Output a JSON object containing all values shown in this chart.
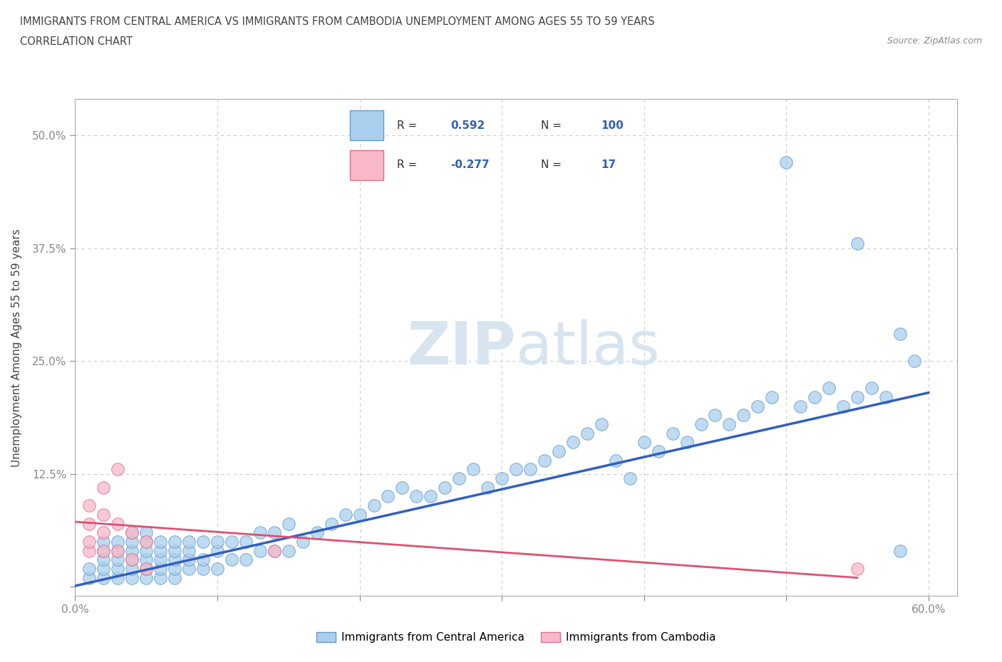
{
  "title_line1": "IMMIGRANTS FROM CENTRAL AMERICA VS IMMIGRANTS FROM CAMBODIA UNEMPLOYMENT AMONG AGES 55 TO 59 YEARS",
  "title_line2": "CORRELATION CHART",
  "source_text": "Source: ZipAtlas.com",
  "ylabel": "Unemployment Among Ages 55 to 59 years",
  "xlim": [
    0.0,
    0.62
  ],
  "ylim": [
    -0.01,
    0.54
  ],
  "R_blue": 0.592,
  "N_blue": 100,
  "R_pink": -0.277,
  "N_pink": 17,
  "color_blue": "#aacfee",
  "color_pink": "#f8b8c8",
  "line_blue": "#3060c0",
  "line_pink": "#e05070",
  "watermark_color": "#d8e4f0",
  "grid_color": "#cccccc",
  "blue_line_start_y": 0.001,
  "blue_line_end_y": 0.215,
  "pink_line_start_y": 0.072,
  "pink_line_end_x": 0.55,
  "pink_line_end_y": 0.01,
  "blue_x": [
    0.01,
    0.01,
    0.02,
    0.02,
    0.02,
    0.02,
    0.02,
    0.03,
    0.03,
    0.03,
    0.03,
    0.03,
    0.04,
    0.04,
    0.04,
    0.04,
    0.04,
    0.04,
    0.05,
    0.05,
    0.05,
    0.05,
    0.05,
    0.05,
    0.06,
    0.06,
    0.06,
    0.06,
    0.06,
    0.07,
    0.07,
    0.07,
    0.07,
    0.07,
    0.08,
    0.08,
    0.08,
    0.08,
    0.09,
    0.09,
    0.09,
    0.1,
    0.1,
    0.1,
    0.11,
    0.11,
    0.12,
    0.12,
    0.13,
    0.13,
    0.14,
    0.14,
    0.15,
    0.15,
    0.16,
    0.17,
    0.18,
    0.19,
    0.2,
    0.21,
    0.22,
    0.23,
    0.24,
    0.25,
    0.26,
    0.27,
    0.28,
    0.29,
    0.3,
    0.31,
    0.32,
    0.33,
    0.34,
    0.35,
    0.36,
    0.37,
    0.38,
    0.39,
    0.4,
    0.41,
    0.42,
    0.43,
    0.44,
    0.45,
    0.46,
    0.47,
    0.48,
    0.49,
    0.5,
    0.51,
    0.52,
    0.53,
    0.54,
    0.55,
    0.56,
    0.57,
    0.58,
    0.59,
    0.55,
    0.58
  ],
  "blue_y": [
    0.01,
    0.02,
    0.01,
    0.02,
    0.03,
    0.04,
    0.05,
    0.01,
    0.02,
    0.03,
    0.04,
    0.05,
    0.01,
    0.02,
    0.03,
    0.04,
    0.05,
    0.06,
    0.01,
    0.02,
    0.03,
    0.04,
    0.05,
    0.06,
    0.01,
    0.02,
    0.03,
    0.04,
    0.05,
    0.01,
    0.02,
    0.03,
    0.04,
    0.05,
    0.02,
    0.03,
    0.04,
    0.05,
    0.02,
    0.03,
    0.05,
    0.02,
    0.04,
    0.05,
    0.03,
    0.05,
    0.03,
    0.05,
    0.04,
    0.06,
    0.04,
    0.06,
    0.04,
    0.07,
    0.05,
    0.06,
    0.07,
    0.08,
    0.08,
    0.09,
    0.1,
    0.11,
    0.1,
    0.1,
    0.11,
    0.12,
    0.13,
    0.11,
    0.12,
    0.13,
    0.13,
    0.14,
    0.15,
    0.16,
    0.17,
    0.18,
    0.14,
    0.12,
    0.16,
    0.15,
    0.17,
    0.16,
    0.18,
    0.19,
    0.18,
    0.19,
    0.2,
    0.21,
    0.47,
    0.2,
    0.21,
    0.22,
    0.2,
    0.21,
    0.22,
    0.21,
    0.04,
    0.25,
    0.38,
    0.28
  ],
  "pink_x": [
    0.01,
    0.01,
    0.01,
    0.01,
    0.02,
    0.02,
    0.02,
    0.02,
    0.03,
    0.03,
    0.03,
    0.04,
    0.04,
    0.05,
    0.05,
    0.14,
    0.55
  ],
  "pink_y": [
    0.04,
    0.05,
    0.07,
    0.09,
    0.04,
    0.06,
    0.08,
    0.11,
    0.04,
    0.07,
    0.13,
    0.03,
    0.06,
    0.02,
    0.05,
    0.04,
    0.02
  ]
}
